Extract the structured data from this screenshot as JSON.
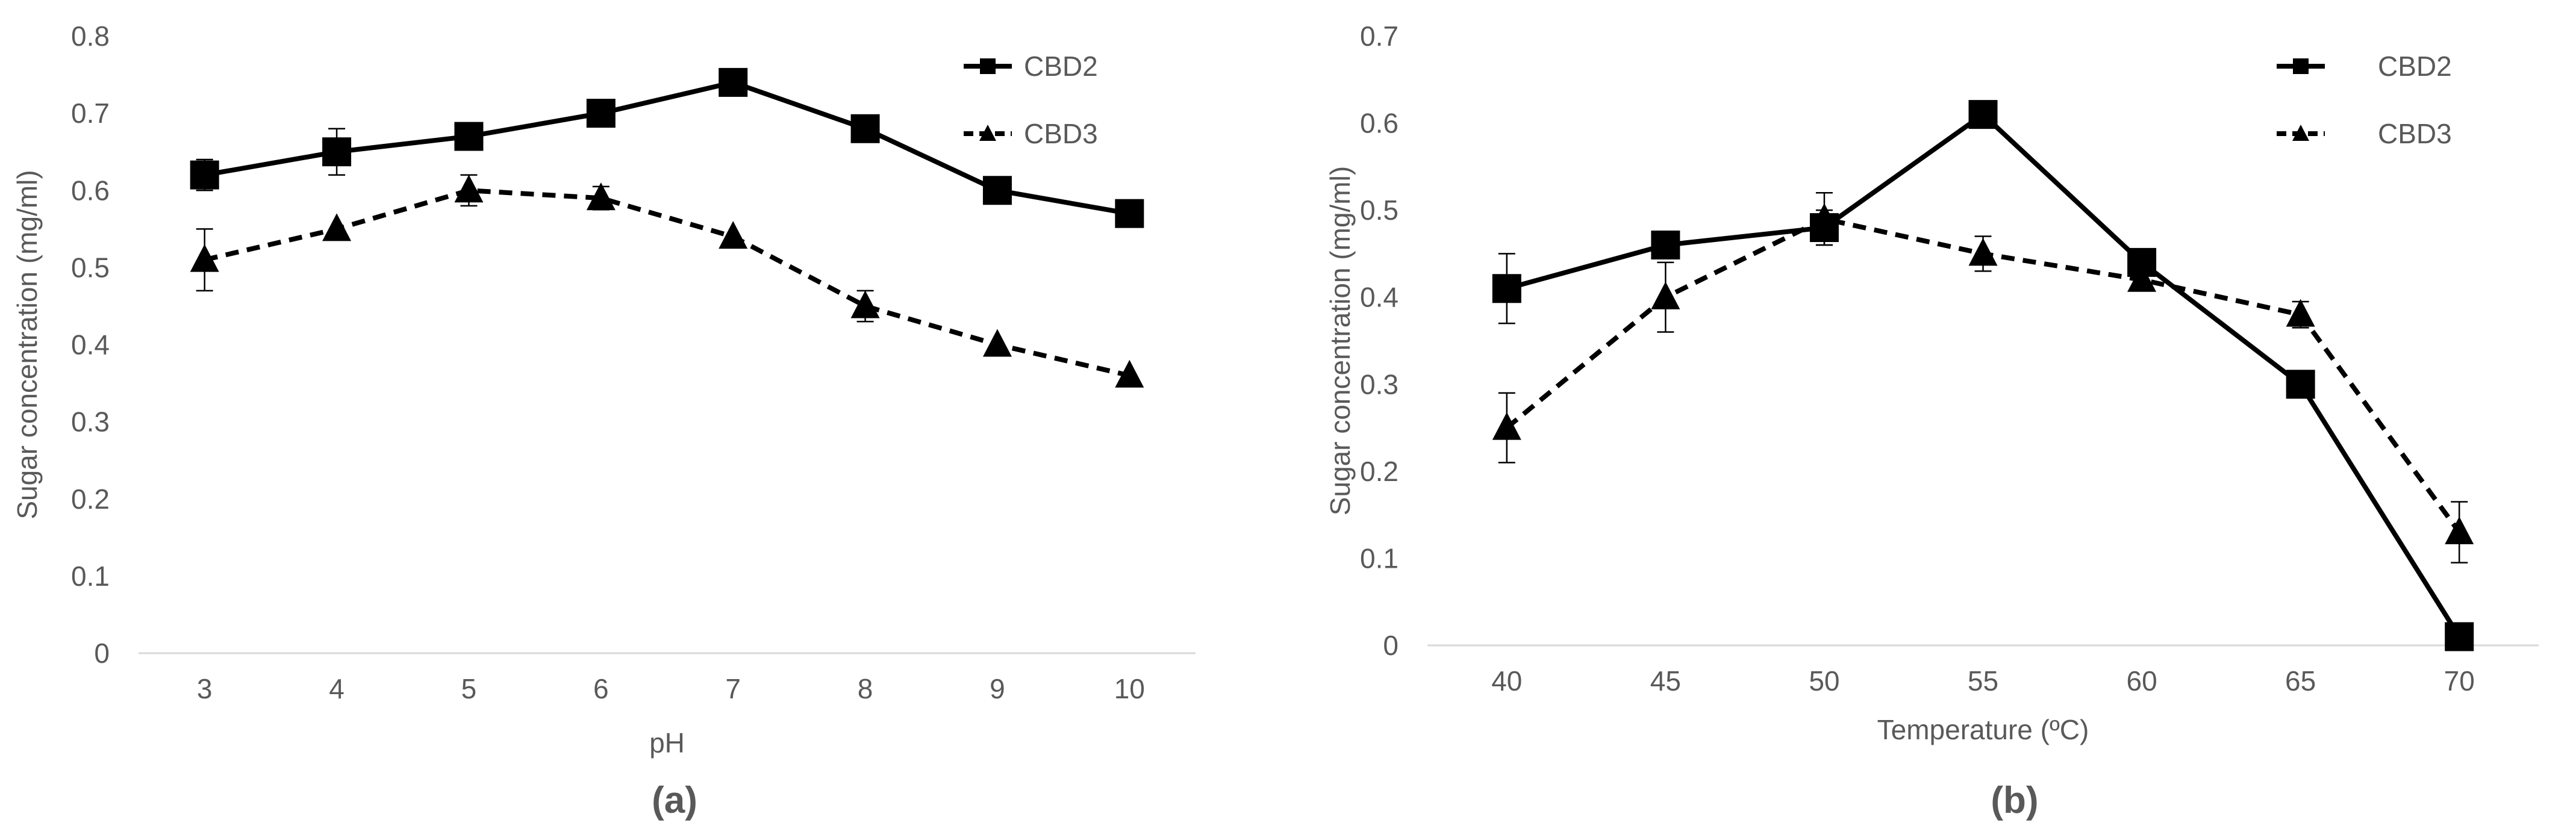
{
  "chart_data": [
    {
      "type": "line",
      "panel_label": "(a)",
      "title": "",
      "xlabel": "pH",
      "ylabel": "Sugar concentration (mg/ml)",
      "categories": [
        "3",
        "4",
        "5",
        "6",
        "7",
        "8",
        "9",
        "10"
      ],
      "ylim": [
        0,
        0.8
      ],
      "yticks": [
        "0",
        "0.1",
        "0.2",
        "0.3",
        "0.4",
        "0.5",
        "0.6",
        "0.7",
        "0.8"
      ],
      "grid": false,
      "legend_position": "top-right",
      "series": [
        {
          "name": "CBD2",
          "line_style": "solid",
          "marker": "square",
          "color": "#000000",
          "values": [
            0.62,
            0.65,
            0.67,
            0.7,
            0.74,
            0.68,
            0.6,
            0.57
          ],
          "errors": [
            0.02,
            0.03,
            0.0,
            0.0,
            0.0,
            0.0,
            0.0,
            0.0
          ]
        },
        {
          "name": "CBD3",
          "line_style": "dashed",
          "marker": "triangle",
          "color": "#000000",
          "values": [
            0.51,
            0.55,
            0.6,
            0.59,
            0.54,
            0.45,
            0.4,
            0.36
          ],
          "errors": [
            0.04,
            0.0,
            0.02,
            0.015,
            0.0,
            0.02,
            0.0,
            0.0
          ]
        }
      ]
    },
    {
      "type": "line",
      "panel_label": "(b)",
      "title": "",
      "xlabel": "Temperature (ºC)",
      "ylabel": "Sugar concentration (mg/ml)",
      "categories": [
        "40",
        "45",
        "50",
        "55",
        "60",
        "65",
        "70"
      ],
      "ylim": [
        0,
        0.7
      ],
      "yticks": [
        "0",
        "0.1",
        "0.2",
        "0.3",
        "0.4",
        "0.5",
        "0.6",
        "0.7"
      ],
      "grid": false,
      "legend_position": "top-right",
      "series": [
        {
          "name": "CBD2",
          "line_style": "solid",
          "marker": "square",
          "color": "#000000",
          "values": [
            0.41,
            0.46,
            0.48,
            0.61,
            0.44,
            0.3,
            0.01
          ],
          "errors": [
            0.04,
            0.0,
            0.02,
            0.0,
            0.0,
            0.0,
            0.0
          ]
        },
        {
          "name": "CBD3",
          "line_style": "dashed",
          "marker": "triangle",
          "color": "#000000",
          "values": [
            0.25,
            0.4,
            0.49,
            0.45,
            0.42,
            0.38,
            0.13
          ],
          "errors": [
            0.04,
            0.04,
            0.03,
            0.02,
            0.0,
            0.015,
            0.035
          ]
        }
      ]
    }
  ]
}
